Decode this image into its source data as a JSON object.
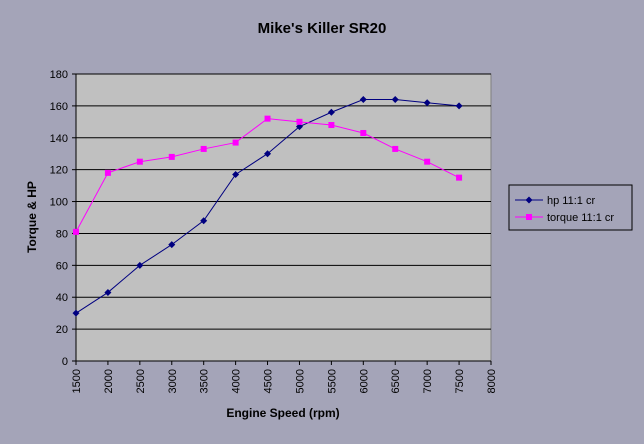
{
  "chart_data": {
    "type": "line",
    "title": "Mike's Killer SR20",
    "xlabel": "Engine Speed (rpm)",
    "ylabel": "Torque & HP",
    "x_ticks": [
      1500,
      2000,
      2500,
      3000,
      3500,
      4000,
      4500,
      5000,
      5500,
      6000,
      6500,
      7000,
      7500,
      8000
    ],
    "y_ticks": [
      0,
      20,
      40,
      60,
      80,
      100,
      120,
      140,
      160,
      180
    ],
    "xlim": [
      1500,
      8000
    ],
    "ylim": [
      0,
      180
    ],
    "grid": "horizontal",
    "legend_position": "right",
    "plot_background": "#c0c0c0",
    "series": [
      {
        "name": "hp 11:1 cr",
        "color": "#000080",
        "marker": "diamond",
        "x": [
          1500,
          2000,
          2500,
          3000,
          3500,
          4000,
          4500,
          5000,
          5500,
          6000,
          6500,
          7000,
          7500
        ],
        "values": [
          30,
          43,
          60,
          73,
          88,
          117,
          130,
          147,
          156,
          164,
          164,
          162,
          160
        ]
      },
      {
        "name": "torque 11:1 cr",
        "color": "#ff00ff",
        "marker": "square",
        "x": [
          1500,
          2000,
          2500,
          3000,
          3500,
          4000,
          4500,
          5000,
          5500,
          6000,
          6500,
          7000,
          7500
        ],
        "values": [
          81,
          118,
          125,
          128,
          133,
          137,
          152,
          150,
          148,
          143,
          133,
          125,
          115
        ]
      }
    ]
  }
}
